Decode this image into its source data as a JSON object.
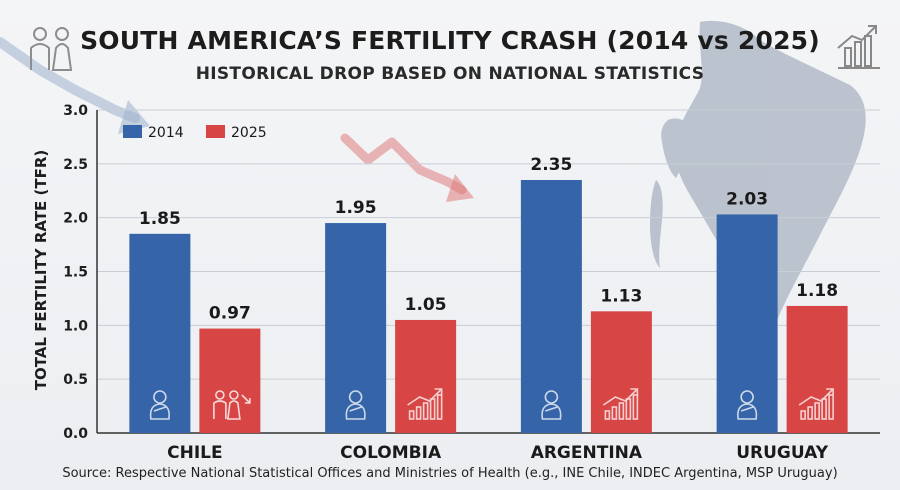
{
  "header": {
    "title": "SOUTH AMERICA’S FERTILITY CRASH (2014 vs 2025)",
    "subtitle": "HISTORICAL DROP BASED ON NATIONAL STATISTICS"
  },
  "footer": {
    "source": "Source: Respective National Statistical Offices and Ministries of Health (e.g., INE Chile, INDEC Argentina, MSP Uruguay)"
  },
  "icons": {
    "top_left": "family-icon",
    "top_right": "growth-chart-icon",
    "bar_2014": "baby-icon",
    "bar_2025_chile": "family-decline-icon",
    "bar_2025_other": "growth-chart-icon"
  },
  "colors": {
    "series_2014": "#3565a8",
    "series_2025": "#d84545",
    "map": "#9aa6b6",
    "arrow": "#d96b6b"
  },
  "chart_data": {
    "type": "bar",
    "title": "SOUTH AMERICA’S FERTILITY CRASH (2014 vs 2025)",
    "subtitle": "HISTORICAL DROP BASED ON NATIONAL STATISTICS",
    "xlabel": "",
    "ylabel": "TOTAL FERTILITY RATE (TFR)",
    "ylim": [
      0,
      3.0
    ],
    "yticks": [
      "0.0",
      "0.5",
      "1.0",
      "1.5",
      "2.0",
      "2.5",
      "3.0"
    ],
    "categories": [
      "CHILE",
      "COLOMBIA",
      "ARGENTINA",
      "URUGUAY"
    ],
    "series": [
      {
        "name": "2014",
        "values": [
          1.85,
          1.95,
          2.35,
          2.03
        ],
        "labels": [
          "1.85",
          "1.95",
          "2.35",
          "2.03"
        ]
      },
      {
        "name": "2025",
        "values": [
          0.97,
          1.05,
          1.13,
          1.18
        ],
        "labels": [
          "0.97",
          "1.05",
          "1.13",
          "1.18"
        ]
      }
    ],
    "legend_position": "top-left",
    "grid": true
  }
}
